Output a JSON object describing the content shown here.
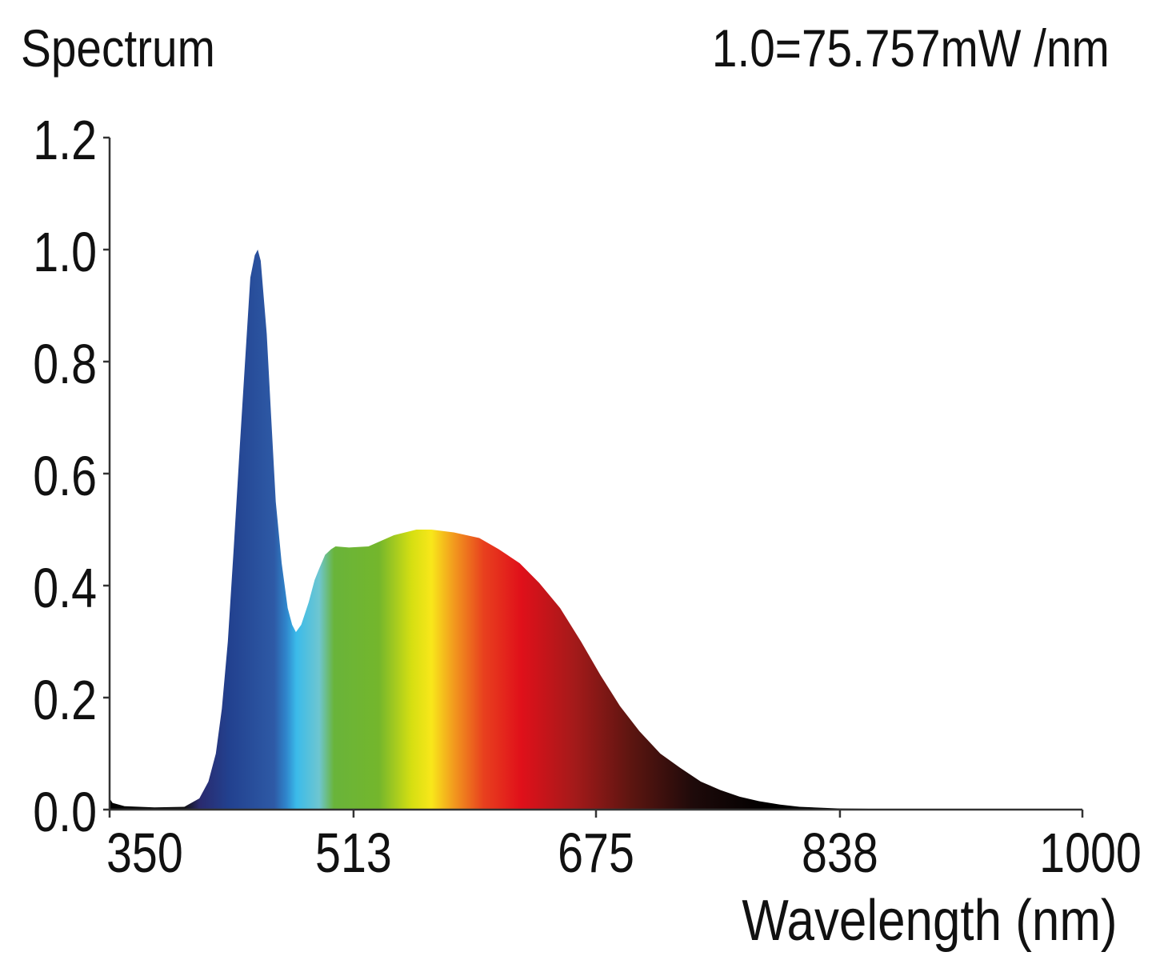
{
  "chart_data": {
    "type": "area",
    "title": "Spectrum",
    "annotation": "1.0=75.757mW /nm",
    "xlabel": "Wavelength (nm)",
    "ylabel": "",
    "xlim": [
      350,
      1000
    ],
    "ylim": [
      0,
      1.2
    ],
    "xticks": [
      350,
      513,
      675,
      838,
      1000
    ],
    "yticks": [
      "0.0",
      "0.2",
      "0.4",
      "0.6",
      "0.8",
      "1.0",
      "1.2"
    ],
    "grid": false,
    "fill": "visible-spectrum color gradient",
    "x": [
      350,
      352,
      360,
      380,
      400,
      410,
      416,
      421,
      425,
      429,
      433,
      437,
      441,
      444,
      447,
      449,
      451,
      455,
      458,
      461,
      465,
      469,
      472,
      474.5,
      478,
      483,
      487,
      490,
      494,
      498,
      501,
      510,
      523,
      540,
      555,
      565,
      580,
      597,
      610,
      624,
      637,
      651,
      665,
      678,
      691,
      704,
      718,
      731,
      745,
      758,
      771,
      784,
      798,
      811,
      838,
      870,
      900,
      950,
      1000
    ],
    "y": [
      0.02,
      0.012,
      0.006,
      0.004,
      0.005,
      0.02,
      0.05,
      0.1,
      0.18,
      0.3,
      0.47,
      0.65,
      0.82,
      0.95,
      0.99,
      1.0,
      0.98,
      0.85,
      0.7,
      0.55,
      0.44,
      0.36,
      0.33,
      0.317,
      0.33,
      0.37,
      0.41,
      0.43,
      0.455,
      0.465,
      0.47,
      0.468,
      0.47,
      0.49,
      0.5,
      0.5,
      0.495,
      0.485,
      0.465,
      0.44,
      0.405,
      0.36,
      0.3,
      0.24,
      0.185,
      0.14,
      0.1,
      0.075,
      0.05,
      0.035,
      0.023,
      0.015,
      0.009,
      0.005,
      0.002,
      0.001,
      0.0005,
      0.0002,
      0.0
    ]
  }
}
